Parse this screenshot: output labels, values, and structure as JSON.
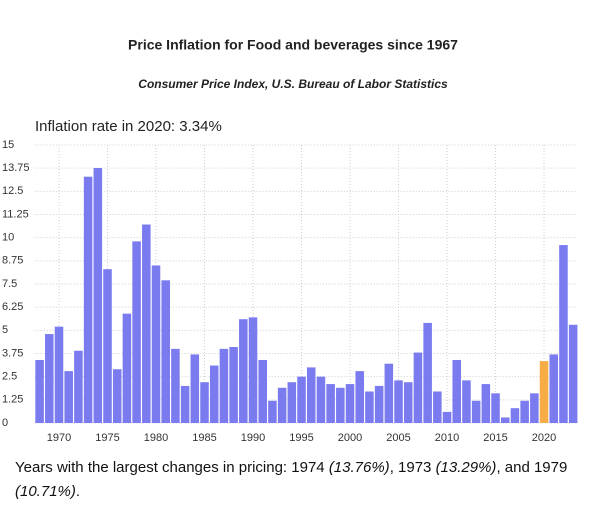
{
  "chart_data": {
    "type": "bar",
    "title": "Price Inflation for Food and beverages since 1967",
    "subtitle": "Consumer Price Index, U.S. Bureau of Labor Statistics",
    "annotation": "Inflation rate in 2020: 3.34%",
    "x": [
      1968,
      1969,
      1970,
      1971,
      1972,
      1973,
      1974,
      1975,
      1976,
      1977,
      1978,
      1979,
      1980,
      1981,
      1982,
      1983,
      1984,
      1985,
      1986,
      1987,
      1988,
      1989,
      1990,
      1991,
      1992,
      1993,
      1994,
      1995,
      1996,
      1997,
      1998,
      1999,
      2000,
      2001,
      2002,
      2003,
      2004,
      2005,
      2006,
      2007,
      2008,
      2009,
      2010,
      2011,
      2012,
      2013,
      2014,
      2015,
      2016,
      2017,
      2018,
      2019,
      2020,
      2021,
      2022,
      2023
    ],
    "values": [
      3.4,
      4.8,
      5.2,
      2.8,
      3.9,
      13.29,
      13.76,
      8.3,
      2.9,
      5.9,
      9.8,
      10.71,
      8.5,
      7.7,
      4.0,
      2.0,
      3.7,
      2.2,
      3.1,
      4.0,
      4.1,
      5.6,
      5.7,
      3.4,
      1.2,
      1.9,
      2.2,
      2.5,
      3.0,
      2.5,
      2.1,
      1.9,
      2.1,
      2.8,
      1.7,
      2.0,
      3.2,
      2.3,
      2.2,
      3.8,
      5.4,
      1.7,
      0.6,
      3.4,
      2.3,
      1.2,
      2.1,
      1.6,
      0.3,
      0.8,
      1.2,
      1.6,
      3.34,
      3.7,
      9.6,
      5.3
    ],
    "color": "#7b7bf0",
    "highlight": 2020,
    "highlight_color": "#f7ac45",
    "xlim": [
      1967.5,
      2023.5
    ],
    "xticks": [
      1970,
      1975,
      1980,
      1985,
      1990,
      1995,
      2000,
      2005,
      2010,
      2015,
      2020
    ],
    "ylim": [
      0,
      15
    ],
    "yticks": [
      0,
      1.25,
      2.5,
      3.75,
      5,
      6.25,
      7.5,
      8.75,
      10,
      11.25,
      12.5,
      13.75,
      15
    ],
    "grid": true
  },
  "footer": [
    "Years with the largest changes in pricing: 1974 ",
    "(13.76%)",
    ", 1973 ",
    "(13.29%)",
    ", and 1979 ",
    "(10.71%)",
    "."
  ]
}
